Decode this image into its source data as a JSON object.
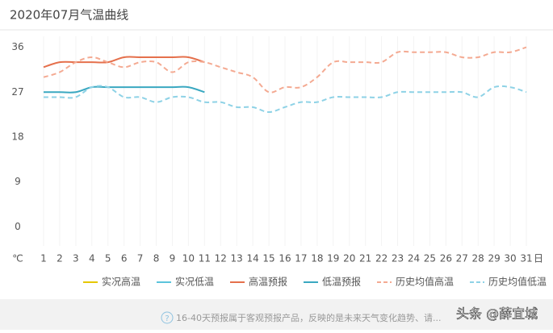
{
  "chart_data": {
    "type": "line",
    "title": "2020年07月气温曲线",
    "y_unit": "℃",
    "x_unit": "日",
    "x": [
      1,
      2,
      3,
      4,
      5,
      6,
      7,
      8,
      9,
      10,
      11,
      12,
      13,
      14,
      15,
      16,
      17,
      18,
      19,
      20,
      21,
      22,
      23,
      24,
      25,
      26,
      27,
      28,
      29,
      30,
      31
    ],
    "xlim": [
      1,
      31
    ],
    "ylim": [
      -3,
      39
    ],
    "yticks": [
      0,
      9,
      18,
      27,
      36
    ],
    "smooth": true,
    "series": [
      {
        "name": "实况高温",
        "color": "#e6c700",
        "dash": false,
        "values": [
          null,
          null,
          null,
          null,
          null,
          null,
          null,
          null,
          null,
          null,
          null,
          null,
          null,
          null,
          null,
          null,
          null,
          null,
          null,
          null,
          null,
          null,
          null,
          null,
          null,
          null,
          null,
          null,
          null,
          null,
          null
        ]
      },
      {
        "name": "实况低温",
        "color": "#5bc4dc",
        "dash": false,
        "values": [
          null,
          null,
          null,
          null,
          null,
          null,
          null,
          null,
          null,
          null,
          null,
          null,
          null,
          null,
          null,
          null,
          null,
          null,
          null,
          null,
          null,
          null,
          null,
          null,
          null,
          null,
          null,
          null,
          null,
          null,
          null
        ]
      },
      {
        "name": "高温预报",
        "color": "#e5704c",
        "dash": false,
        "values": [
          32,
          33,
          33,
          33,
          33,
          34,
          34,
          34,
          34,
          34,
          33,
          null,
          null,
          null,
          null,
          null,
          null,
          null,
          null,
          null,
          null,
          null,
          null,
          null,
          null,
          null,
          null,
          null,
          null,
          null,
          null
        ]
      },
      {
        "name": "低温预报",
        "color": "#3aa8c1",
        "dash": false,
        "values": [
          27,
          27,
          27,
          28,
          28,
          28,
          28,
          28,
          28,
          28,
          27,
          null,
          null,
          null,
          null,
          null,
          null,
          null,
          null,
          null,
          null,
          null,
          null,
          null,
          null,
          null,
          null,
          null,
          null,
          null,
          null
        ]
      },
      {
        "name": "历史均值高温",
        "color": "#f4aa92",
        "dash": true,
        "values": [
          30,
          31,
          33,
          34,
          33,
          32,
          33,
          33,
          31,
          33,
          33,
          32,
          31,
          30,
          27,
          28,
          28,
          30,
          33,
          33,
          33,
          33,
          35,
          35,
          35,
          35,
          34,
          34,
          35,
          35,
          36
        ]
      },
      {
        "name": "历史均值低温",
        "color": "#8ed2e6",
        "dash": true,
        "values": [
          26,
          26,
          26,
          28,
          28,
          26,
          26,
          25,
          26,
          26,
          25,
          25,
          24,
          24,
          23,
          24,
          25,
          25,
          26,
          26,
          26,
          26,
          27,
          27,
          27,
          27,
          27,
          26,
          28,
          28,
          27
        ]
      }
    ]
  },
  "footer": {
    "note": "16-40天预报属于客观预报产品，反映的是未来天气变化趋势、请..."
  },
  "watermark": "头条 @薛宜城"
}
